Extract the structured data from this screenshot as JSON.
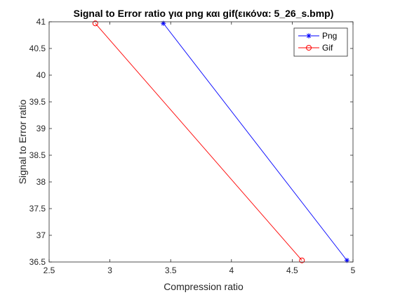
{
  "chart_data": {
    "type": "line",
    "title": "Signal to Error ratio για png και gif(εικόνα: 5_26_s.bmp)",
    "xlabel": "Compression ratio",
    "ylabel": "Signal to Error ratio",
    "xlim": [
      2.5,
      5
    ],
    "ylim": [
      36.5,
      41
    ],
    "xticks": [
      2.5,
      3,
      3.5,
      4,
      4.5,
      5
    ],
    "yticks": [
      36.5,
      37,
      37.5,
      38,
      38.5,
      39,
      39.5,
      40,
      40.5,
      41
    ],
    "xtick_labels": [
      "2.5",
      "3",
      "3.5",
      "4",
      "4.5",
      "5"
    ],
    "ytick_labels": [
      "36.5",
      "37",
      "37.5",
      "38",
      "38.5",
      "39",
      "39.5",
      "40",
      "40.5",
      "41"
    ],
    "grid": false,
    "legend_position": "top-right",
    "series": [
      {
        "name": "Png",
        "color": "#0000ff",
        "marker": "asterisk",
        "x": [
          3.44,
          4.95
        ],
        "y": [
          40.97,
          36.53
        ]
      },
      {
        "name": "Gif",
        "color": "#ff0000",
        "marker": "circle",
        "x": [
          2.88,
          4.58
        ],
        "y": [
          40.97,
          36.53
        ]
      }
    ]
  }
}
